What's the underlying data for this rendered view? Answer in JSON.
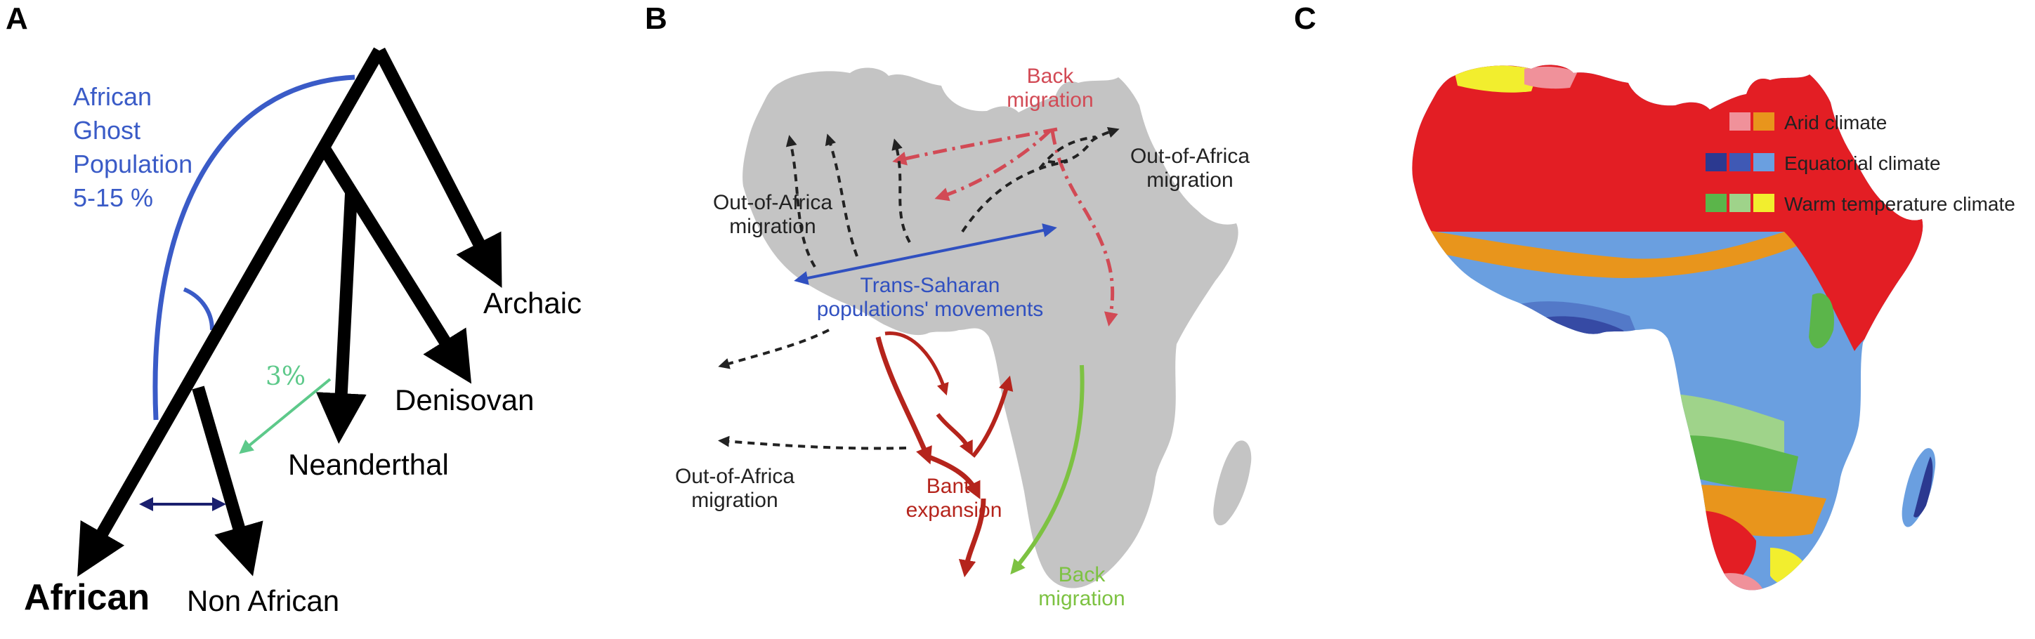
{
  "panel_a": {
    "label": "A",
    "ghost_population": {
      "line1": "African",
      "line2": "Ghost",
      "line3": "Population",
      "line4": "5-15 %"
    },
    "introgression_percent": "3%",
    "taxa": {
      "archaic": "Archaic",
      "denisovan": "Denisovan",
      "neanderthal": "Neanderthal",
      "african": "African",
      "non_african": "Non African"
    },
    "colors": {
      "ghost": "#3a5bc7",
      "introgression": "#5dc98a",
      "tree": "#000000",
      "gene_flow": "#1a1f6e"
    }
  },
  "panel_b": {
    "label": "B",
    "back_migration_north": {
      "line1": "Back",
      "line2": "migration"
    },
    "out_of_africa_ne": {
      "line1": "Out-of-Africa",
      "line2": "migration"
    },
    "out_of_africa_nw": {
      "line1": "Out-of-Africa",
      "line2": "migration"
    },
    "trans_saharan": {
      "line1": "Trans-Saharan",
      "line2": "populations' movements"
    },
    "out_of_africa_sw": {
      "line1": "Out-of-Africa",
      "line2": "migration"
    },
    "bantu": {
      "line1": "Bantu",
      "line2": "expansion"
    },
    "back_migration_south": {
      "line1": "Back",
      "line2": "migration"
    },
    "colors": {
      "land": "#c4c4c4",
      "back_migration": "#d24a55",
      "trans_saharan": "#3050c0",
      "bantu": "#b5241c",
      "back_migration_south": "#7dc242",
      "out_of_africa": "#222222"
    }
  },
  "panel_c": {
    "label": "C",
    "legend": [
      {
        "label": "Arid climate",
        "swatches": [
          "#e31e24",
          "#f0919a",
          "#e8951c"
        ]
      },
      {
        "label": "Equatorial climate",
        "swatches": [
          "#2b3990",
          "#3f59b5",
          "#6a9fe0"
        ]
      },
      {
        "label": "Warm temperature climate",
        "swatches": [
          "#5bb54a",
          "#9fd38a",
          "#f2ee2e"
        ]
      }
    ]
  }
}
